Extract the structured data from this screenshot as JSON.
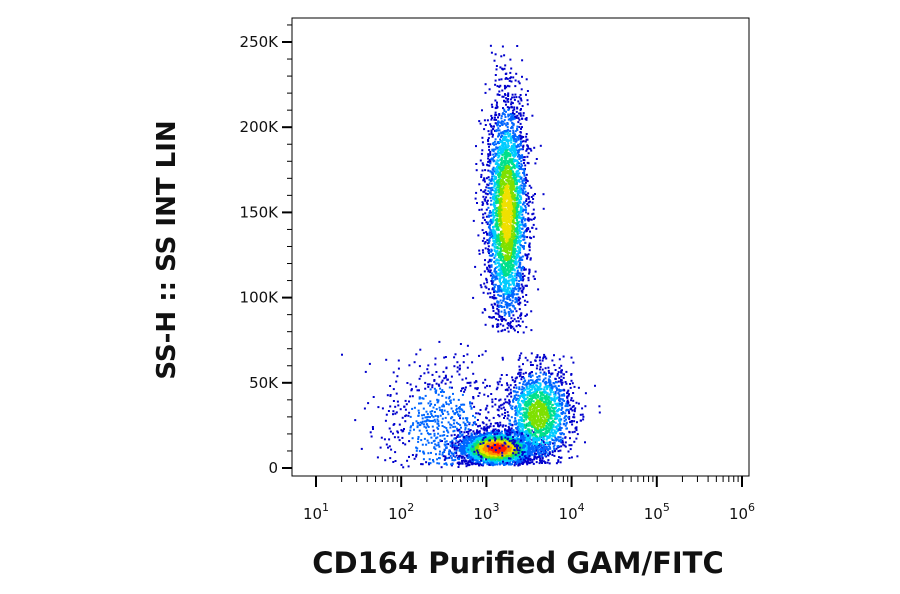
{
  "chart_data": {
    "type": "scatter",
    "subtype": "flow-cytometry-density-dot-plot",
    "xlabel": "CD164 Purified GAM/FITC",
    "ylabel": "SS-H :: SS INT LIN",
    "x_scale": "log",
    "x_range": [
      10,
      1000000
    ],
    "x_ticks": [
      {
        "base": "10",
        "exp": "1",
        "value": 10
      },
      {
        "base": "10",
        "exp": "2",
        "value": 100
      },
      {
        "base": "10",
        "exp": "3",
        "value": 1000
      },
      {
        "base": "10",
        "exp": "4",
        "value": 10000
      },
      {
        "base": "10",
        "exp": "5",
        "value": 100000
      },
      {
        "base": "10",
        "exp": "6",
        "value": 1000000
      }
    ],
    "y_scale": "linear",
    "y_range": [
      0,
      262144
    ],
    "y_ticks": [
      {
        "label": "0",
        "value": 0
      },
      {
        "label": "50K",
        "value": 50000
      },
      {
        "label": "100K",
        "value": 100000
      },
      {
        "label": "150K",
        "value": 150000
      },
      {
        "label": "200K",
        "value": 200000
      },
      {
        "label": "250K",
        "value": 250000
      }
    ],
    "grid": false,
    "legend": "none",
    "density_colors": [
      "#0000cc",
      "#0066ff",
      "#00ccff",
      "#00e08a",
      "#7ee000",
      "#f0e000",
      "#ff8c00",
      "#ff1a00"
    ],
    "populations": [
      {
        "x_center": 1700,
        "x_log_sd": 0.12,
        "y_center": 150000,
        "y_sd": 33000,
        "y_min": 80000,
        "y_max": 255000,
        "count": 3400,
        "peak_density": 0.72
      },
      {
        "x_center": 1300,
        "x_log_sd": 0.22,
        "y_center": 12000,
        "y_sd": 5000,
        "y_min": 2000,
        "y_max": 30000,
        "count": 3000,
        "peak_density": 1.0
      },
      {
        "x_center": 4000,
        "x_log_sd": 0.2,
        "y_center": 32000,
        "y_sd": 14000,
        "y_min": 3000,
        "y_max": 68000,
        "count": 1700,
        "peak_density": 0.6
      },
      {
        "x_center": 300,
        "x_log_sd": 0.35,
        "y_center": 25000,
        "y_sd": 20000,
        "y_min": 1000,
        "y_max": 100000,
        "count": 700,
        "peak_density": 0.25
      }
    ]
  }
}
